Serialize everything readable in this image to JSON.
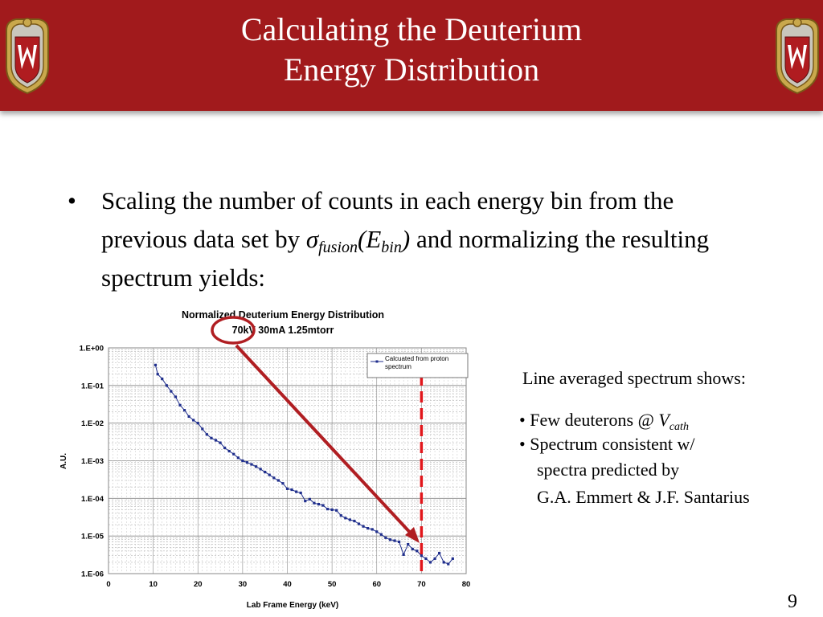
{
  "slide": {
    "title_line1": "Calculating the Deuterium",
    "title_line2": "Energy Distribution",
    "bullet_part1": "Scaling the number of counts in each energy bin from the previous data set by ",
    "sigma": "σ",
    "sigma_sub": "fusion",
    "e_open": "(E",
    "e_sub": "bin",
    "e_close": ")",
    "bullet_part2": " and normalizing the resulting spectrum yields:",
    "side_heading": "Line averaged spectrum shows:",
    "side_item1_prefix": "• Few deuterons @ ",
    "side_item1_v": "V",
    "side_item1_sub": "cath",
    "side_item2_line1": "• Spectrum consistent w/",
    "side_item2_line2": "spectra predicted by",
    "side_item2_line3": "G.A. Emmert & J.F. Santarius",
    "page_number": "9",
    "colors": {
      "banner": "#a11a1c",
      "annotation": "#b01e22",
      "series": "#1f2e8c"
    }
  },
  "chart_data": {
    "type": "scatter",
    "title": "Normalized Deuterium Energy Distribution",
    "subtitle": "70kV 30mA 1.25mtorr",
    "xlabel": "Lab Frame Energy (keV)",
    "ylabel": "A.U.",
    "xlim": [
      0,
      80
    ],
    "ylim": [
      1e-06,
      1
    ],
    "log_y": true,
    "grid": true,
    "legend_position": "top-right",
    "x_ticks": [
      "0",
      "10",
      "20",
      "30",
      "40",
      "50",
      "60",
      "70",
      "80"
    ],
    "y_ticks": [
      "1.E-06",
      "1.E-05",
      "1.E-04",
      "1.E-03",
      "1.E-02",
      "1.E-01",
      "1.E+00"
    ],
    "series": [
      {
        "name": "Calcuated from proton spectrum",
        "x": [
          10.5,
          11.0,
          12.0,
          13.0,
          14.0,
          15.0,
          16.0,
          17.0,
          18.0,
          19.0,
          20.0,
          21.0,
          22.0,
          23.0,
          24.0,
          25.0,
          26.0,
          27.0,
          28.0,
          29.0,
          30.0,
          31.0,
          32.0,
          33.0,
          34.0,
          35.0,
          36.0,
          37.0,
          38.0,
          39.0,
          40.0,
          41.0,
          42.0,
          43.0,
          44.0,
          45.0,
          46.0,
          47.0,
          48.0,
          49.0,
          50.0,
          51.0,
          52.0,
          53.0,
          54.0,
          55.0,
          56.0,
          57.0,
          58.0,
          59.0,
          60.0,
          61.0,
          62.0,
          63.0,
          64.0,
          65.0,
          66.0,
          67.0,
          68.0,
          69.0,
          70.0,
          71.0,
          72.0,
          73.0,
          74.0,
          75.0,
          76.0,
          77.0
        ],
        "y": [
          0.35,
          0.2,
          0.15,
          0.1,
          0.07,
          0.05,
          0.03,
          0.022,
          0.015,
          0.012,
          0.01,
          0.007,
          0.005,
          0.004,
          0.0035,
          0.003,
          0.0022,
          0.0018,
          0.0015,
          0.0012,
          0.001,
          0.0009,
          0.0008,
          0.0007,
          0.0006,
          0.0005,
          0.00042,
          0.00035,
          0.0003,
          0.00025,
          0.00018,
          0.00017,
          0.00015,
          0.00014,
          8.5e-05,
          9.5e-05,
          7.5e-05,
          7e-05,
          6.5e-05,
          5.2e-05,
          5e-05,
          4.8e-05,
          3.5e-05,
          3e-05,
          2.7e-05,
          2.5e-05,
          2.1e-05,
          1.8e-05,
          1.6e-05,
          1.5e-05,
          1.3e-05,
          1.1e-05,
          9e-06,
          8e-06,
          7.5e-06,
          7e-06,
          3.2e-06,
          6e-06,
          4.5e-06,
          4e-06,
          3e-06,
          2.5e-06,
          2e-06,
          2.5e-06,
          3.5e-06,
          2e-06,
          1.8e-06,
          2.5e-06
        ]
      }
    ],
    "marker_line_x": 70
  }
}
